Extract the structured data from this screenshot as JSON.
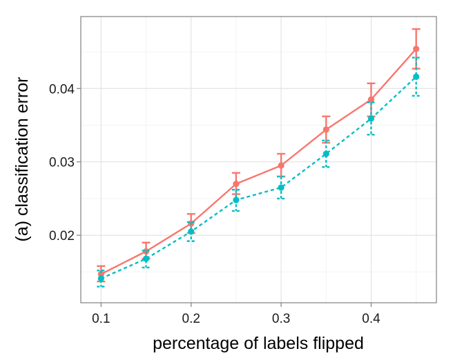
{
  "chart_data": {
    "type": "line",
    "title": "",
    "xlabel": "percentage of labels flipped",
    "ylabel": "(a) classification error",
    "xlim": [
      0.0775,
      0.4725
    ],
    "ylim": [
      0.0108,
      0.0498
    ],
    "x_ticks": [
      0.1,
      0.2,
      0.3,
      0.4
    ],
    "y_ticks": [
      0.02,
      0.03,
      0.04
    ],
    "x_tick_labels": [
      "0.1",
      "0.2",
      "0.3",
      "0.4"
    ],
    "y_tick_labels": [
      "0.02",
      "0.03",
      "0.04"
    ],
    "grid": true,
    "legend": "none",
    "x": [
      0.1,
      0.15,
      0.2,
      0.25,
      0.3,
      0.35,
      0.4,
      0.45
    ],
    "series": [
      {
        "color": "#F8766D",
        "linestyle": "solid",
        "values": [
          0.0147,
          0.0178,
          0.0216,
          0.027,
          0.0295,
          0.0344,
          0.0385,
          0.0454
        ],
        "err_low": [
          0.0137,
          0.0168,
          0.0203,
          0.0256,
          0.028,
          0.0326,
          0.0362,
          0.0427
        ],
        "err_high": [
          0.0158,
          0.019,
          0.0229,
          0.0285,
          0.0311,
          0.0362,
          0.0407,
          0.0481
        ]
      },
      {
        "color": "#00BFC4",
        "linestyle": "dashed",
        "values": [
          0.0141,
          0.0168,
          0.0205,
          0.0248,
          0.0265,
          0.0311,
          0.0359,
          0.0416
        ],
        "err_low": [
          0.013,
          0.0156,
          0.0192,
          0.0233,
          0.025,
          0.0293,
          0.0337,
          0.039
        ],
        "err_high": [
          0.0152,
          0.0179,
          0.0218,
          0.0262,
          0.028,
          0.0329,
          0.0381,
          0.0442
        ]
      }
    ]
  }
}
